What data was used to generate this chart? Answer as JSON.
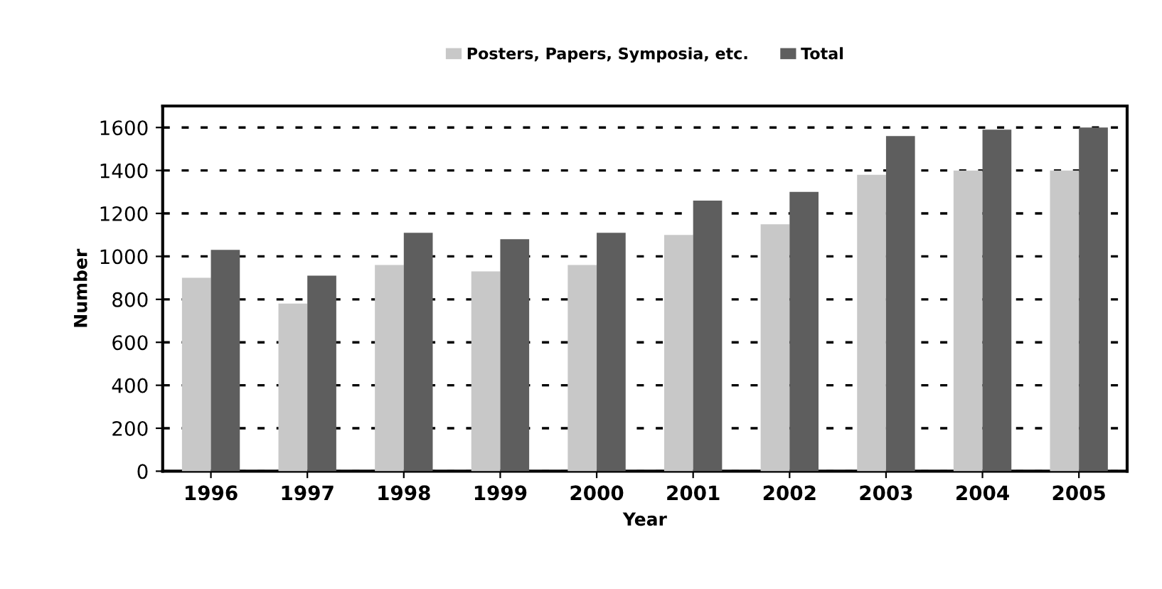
{
  "chart_data": {
    "type": "bar",
    "xlabel": "Year",
    "ylabel": "Number",
    "categories": [
      "1996",
      "1997",
      "1998",
      "1999",
      "2000",
      "2001",
      "2002",
      "2003",
      "2004",
      "2005"
    ],
    "series": [
      {
        "name": "Posters, Papers, Symposia, etc.",
        "color": "#c8c8c8",
        "values": [
          900,
          780,
          960,
          930,
          960,
          1100,
          1150,
          1380,
          1400,
          1400
        ]
      },
      {
        "name": "Total",
        "color": "#5e5e5e",
        "values": [
          1030,
          910,
          1110,
          1080,
          1110,
          1260,
          1300,
          1560,
          1590,
          1600
        ]
      }
    ],
    "ylim": [
      0,
      1700
    ],
    "yticks": [
      0,
      200,
      400,
      600,
      800,
      1000,
      1200,
      1400,
      1600
    ],
    "grid": "y",
    "legend": "top"
  }
}
